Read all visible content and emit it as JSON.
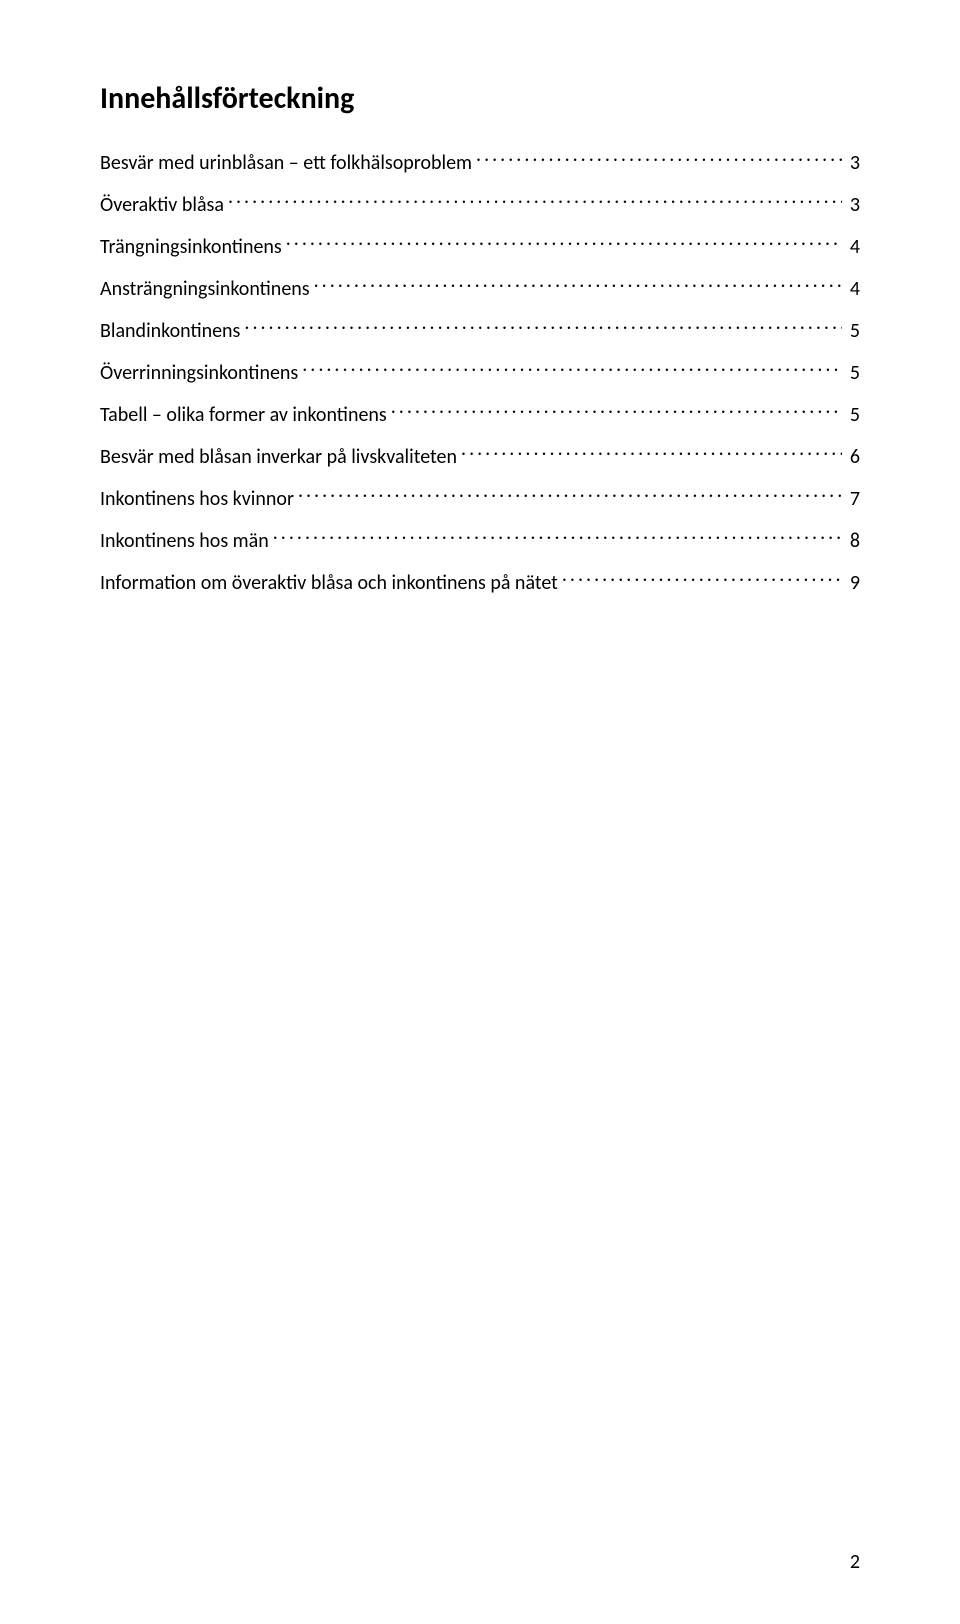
{
  "toc": {
    "title": "Innehållsförteckning",
    "entries": [
      {
        "label": "Besvär med urinblåsan – ett folkhälsoproblem",
        "page": "3"
      },
      {
        "label": "Överaktiv blåsa",
        "page": "3"
      },
      {
        "label": "Trängningsinkontinens",
        "page": "4"
      },
      {
        "label": "Ansträngningsinkontinens",
        "page": "4"
      },
      {
        "label": "Blandinkontinens",
        "page": "5"
      },
      {
        "label": "Överrinningsinkontinens",
        "page": "5"
      },
      {
        "label": "Tabell – olika former av inkontinens",
        "page": "5"
      },
      {
        "label": "Besvär med blåsan inverkar på livskvaliteten",
        "page": "6"
      },
      {
        "label": "Inkontinens hos kvinnor",
        "page": "7"
      },
      {
        "label": "Inkontinens hos män",
        "page": "8"
      },
      {
        "label": "Information om överaktiv blåsa och inkontinens på nätet",
        "page": "9"
      }
    ]
  },
  "page_number": "2",
  "colors": {
    "background": "#ffffff",
    "text": "#000000"
  },
  "typography": {
    "title_fontsize_pt": 22,
    "entry_fontsize_pt": 15,
    "font_family": "Calibri, Segoe UI, Arial, sans-serif"
  }
}
